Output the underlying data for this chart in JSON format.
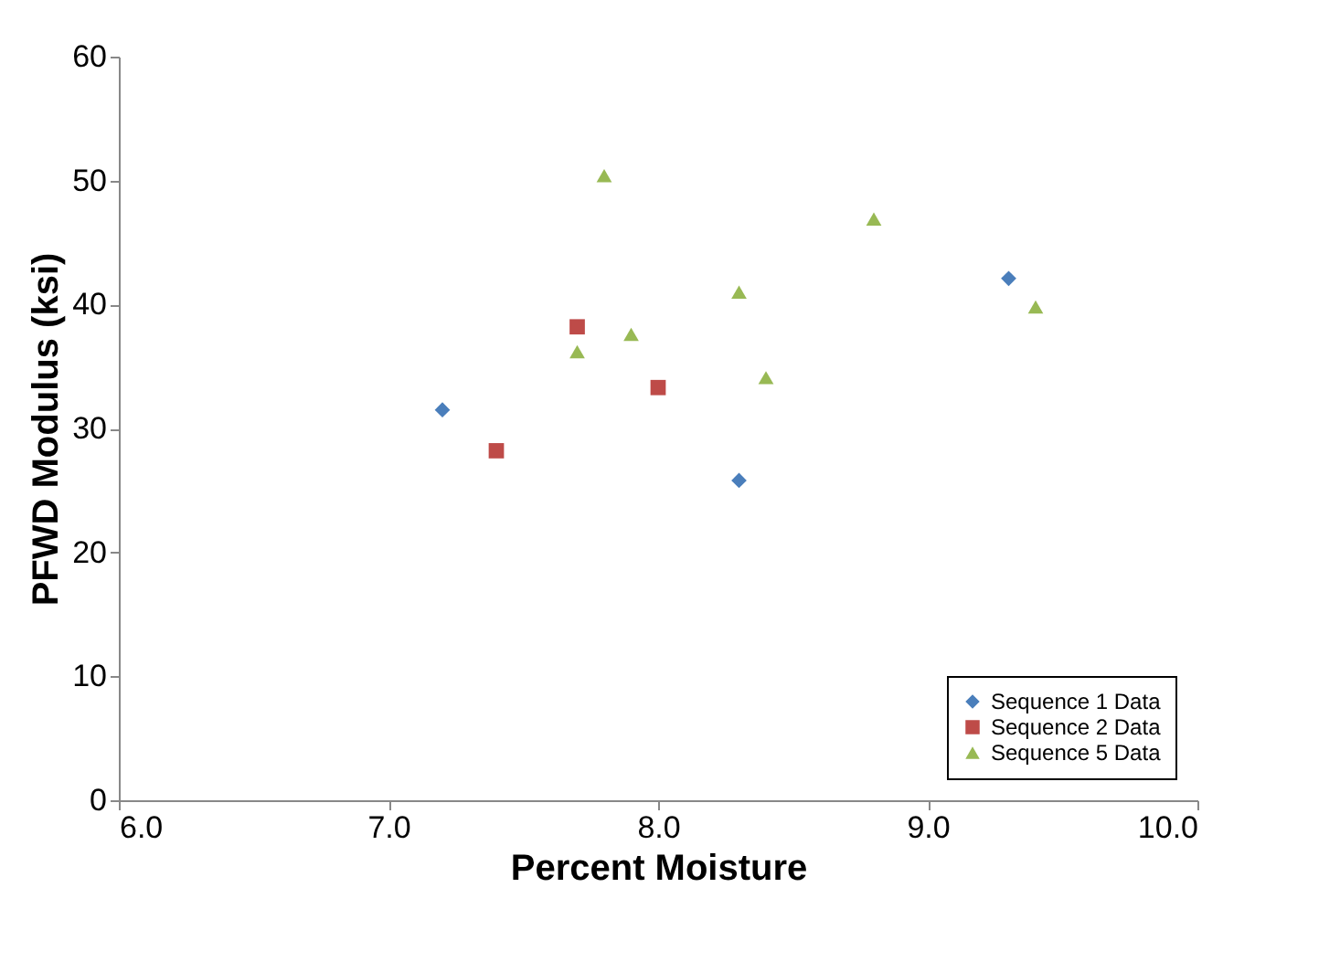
{
  "chart_data": {
    "type": "scatter",
    "xlabel": "Percent Moisture",
    "ylabel": "PFWD Modulus (ksi)",
    "xlim": [
      6,
      10
    ],
    "xticks": [
      {
        "value": 6,
        "label": "6.0"
      },
      {
        "value": 7,
        "label": "7.0"
      },
      {
        "value": 8,
        "label": "8.0"
      },
      {
        "value": 9,
        "label": "9.0"
      },
      {
        "value": 10,
        "label": "10.0"
      }
    ],
    "ylim": [
      0,
      60
    ],
    "yticks": [
      0,
      10,
      20,
      30,
      40,
      50,
      60
    ],
    "legend": "bottom right",
    "grid": false,
    "series": [
      {
        "name": "Sequence 1 Data",
        "color": "#4a7ebb",
        "marker": "diamond",
        "x": [
          7.2,
          8.3,
          9.3
        ],
        "values": [
          31.5,
          25.8,
          42.1
        ]
      },
      {
        "name": "Sequence 2 Data",
        "color": "#be4b48",
        "marker": "square",
        "x": [
          7.4,
          7.7,
          8.0
        ],
        "values": [
          28.2,
          38.2,
          33.3
        ]
      },
      {
        "name": "Sequence 5 Data",
        "color": "#98b954",
        "marker": "triangle",
        "x": [
          7.7,
          7.8,
          7.9,
          8.3,
          8.4,
          8.8,
          9.4
        ],
        "values": [
          36.2,
          50.4,
          37.6,
          41.0,
          34.1,
          46.9,
          39.8
        ]
      }
    ]
  }
}
